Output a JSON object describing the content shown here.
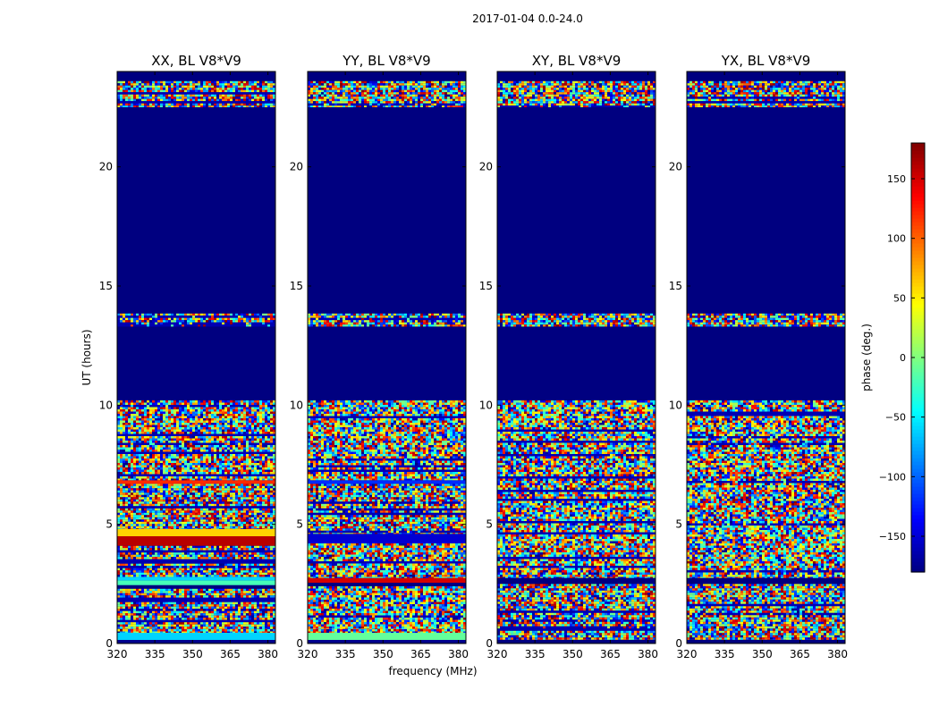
{
  "figure": {
    "suptitle": "2017-01-04 0.0-24.0",
    "colormap": "jet",
    "background_value_color": "#000080"
  },
  "chart_data": [
    {
      "type": "heatmap",
      "title": "XX, BL V8*V9",
      "xlabel": "",
      "ylabel": "UT (hours)",
      "xlim": [
        320,
        383
      ],
      "ylim": [
        0,
        24
      ],
      "xticks": [
        "320",
        "335",
        "350",
        "365",
        "380"
      ],
      "xtick_values": [
        320,
        335,
        350,
        365,
        380
      ],
      "yticks": [
        "0",
        "5",
        "10",
        "15",
        "20"
      ],
      "ytick_values": [
        0,
        5,
        10,
        15,
        20
      ],
      "z_units": "phase (deg.)",
      "bands": [
        {
          "ut": [
            0.0,
            0.15
          ],
          "kind": "solid",
          "phase": -175
        },
        {
          "ut": [
            0.15,
            0.45
          ],
          "kind": "solid",
          "phase": -60
        },
        {
          "ut": [
            0.45,
            0.6
          ],
          "kind": "noise"
        },
        {
          "ut": [
            0.6,
            2.3
          ],
          "kind": "noise"
        },
        {
          "ut": [
            2.3,
            2.45
          ],
          "kind": "solid",
          "phase": -180
        },
        {
          "ut": [
            2.45,
            2.65
          ],
          "kind": "solid",
          "phase": -20
        },
        {
          "ut": [
            2.65,
            2.8
          ],
          "kind": "solid",
          "phase": -60
        },
        {
          "ut": [
            2.8,
            4.1
          ],
          "kind": "noise"
        },
        {
          "ut": [
            4.1,
            4.5
          ],
          "kind": "solid",
          "phase": 160
        },
        {
          "ut": [
            4.5,
            4.8
          ],
          "kind": "solid",
          "phase": 60
        },
        {
          "ut": [
            4.8,
            6.7
          ],
          "kind": "noise"
        },
        {
          "ut": [
            6.7,
            6.85
          ],
          "kind": "solid",
          "phase": 120
        },
        {
          "ut": [
            6.85,
            10.2
          ],
          "kind": "noise"
        },
        {
          "ut": [
            10.2,
            13.3
          ],
          "kind": "solid",
          "phase": -180
        },
        {
          "ut": [
            13.3,
            13.85
          ],
          "kind": "noise"
        },
        {
          "ut": [
            13.85,
            22.5
          ],
          "kind": "solid",
          "phase": -180
        },
        {
          "ut": [
            22.5,
            23.6
          ],
          "kind": "noise"
        },
        {
          "ut": [
            23.6,
            24.0
          ],
          "kind": "solid",
          "phase": -180
        }
      ]
    },
    {
      "type": "heatmap",
      "title": "YY, BL V8*V9",
      "xlabel": "",
      "ylabel": "",
      "xlim": [
        320,
        383
      ],
      "ylim": [
        0,
        24
      ],
      "xticks": [
        "320",
        "335",
        "350",
        "365",
        "380"
      ],
      "xtick_values": [
        320,
        335,
        350,
        365,
        380
      ],
      "yticks": [
        "0",
        "5",
        "10",
        "15",
        "20"
      ],
      "ytick_values": [
        0,
        5,
        10,
        15,
        20
      ],
      "z_units": "phase (deg.)",
      "bands": [
        {
          "ut": [
            0.0,
            0.15
          ],
          "kind": "solid",
          "phase": -175
        },
        {
          "ut": [
            0.15,
            0.45
          ],
          "kind": "solid",
          "phase": -10
        },
        {
          "ut": [
            0.45,
            0.6
          ],
          "kind": "noise"
        },
        {
          "ut": [
            0.6,
            2.4
          ],
          "kind": "noise"
        },
        {
          "ut": [
            2.4,
            2.55
          ],
          "kind": "solid",
          "phase": -180
        },
        {
          "ut": [
            2.55,
            2.75
          ],
          "kind": "solid",
          "phase": 150
        },
        {
          "ut": [
            2.75,
            4.2
          ],
          "kind": "noise"
        },
        {
          "ut": [
            4.2,
            4.6
          ],
          "kind": "solid",
          "phase": -150
        },
        {
          "ut": [
            4.6,
            6.7
          ],
          "kind": "noise"
        },
        {
          "ut": [
            6.7,
            6.85
          ],
          "kind": "solid",
          "phase": -120
        },
        {
          "ut": [
            6.85,
            10.2
          ],
          "kind": "noise"
        },
        {
          "ut": [
            10.2,
            13.3
          ],
          "kind": "solid",
          "phase": -180
        },
        {
          "ut": [
            13.3,
            13.85
          ],
          "kind": "noise"
        },
        {
          "ut": [
            13.85,
            22.5
          ],
          "kind": "solid",
          "phase": -180
        },
        {
          "ut": [
            22.5,
            23.6
          ],
          "kind": "noise"
        },
        {
          "ut": [
            23.6,
            24.0
          ],
          "kind": "solid",
          "phase": -180
        }
      ]
    },
    {
      "type": "heatmap",
      "title": "XY, BL V8*V9",
      "xlabel": "",
      "ylabel": "",
      "xlim": [
        320,
        383
      ],
      "ylim": [
        0,
        24
      ],
      "xticks": [
        "320",
        "335",
        "350",
        "365",
        "380"
      ],
      "xtick_values": [
        320,
        335,
        350,
        365,
        380
      ],
      "yticks": [
        "0",
        "5",
        "10",
        "15",
        "20"
      ],
      "ytick_values": [
        0,
        5,
        10,
        15,
        20
      ],
      "z_units": "phase (deg.)",
      "bands": [
        {
          "ut": [
            0.0,
            0.15
          ],
          "kind": "solid",
          "phase": -180
        },
        {
          "ut": [
            0.15,
            2.5
          ],
          "kind": "noise"
        },
        {
          "ut": [
            2.5,
            2.75
          ],
          "kind": "solid",
          "phase": -180
        },
        {
          "ut": [
            2.75,
            10.2
          ],
          "kind": "noise"
        },
        {
          "ut": [
            10.2,
            13.3
          ],
          "kind": "solid",
          "phase": -180
        },
        {
          "ut": [
            13.3,
            13.85
          ],
          "kind": "noise"
        },
        {
          "ut": [
            13.85,
            22.5
          ],
          "kind": "solid",
          "phase": -180
        },
        {
          "ut": [
            22.5,
            23.6
          ],
          "kind": "noise"
        },
        {
          "ut": [
            23.6,
            24.0
          ],
          "kind": "solid",
          "phase": -180
        }
      ]
    },
    {
      "type": "heatmap",
      "title": "YX, BL V8*V9",
      "xlabel": "",
      "ylabel": "",
      "xlim": [
        320,
        383
      ],
      "ylim": [
        0,
        24
      ],
      "xticks": [
        "320",
        "335",
        "350",
        "365",
        "380"
      ],
      "xtick_values": [
        320,
        335,
        350,
        365,
        380
      ],
      "yticks": [
        "0",
        "5",
        "10",
        "15",
        "20"
      ],
      "ytick_values": [
        0,
        5,
        10,
        15,
        20
      ],
      "z_units": "phase (deg.)",
      "bands": [
        {
          "ut": [
            0.0,
            0.15
          ],
          "kind": "solid",
          "phase": -180
        },
        {
          "ut": [
            0.15,
            2.5
          ],
          "kind": "noise"
        },
        {
          "ut": [
            2.5,
            2.75
          ],
          "kind": "solid",
          "phase": -180
        },
        {
          "ut": [
            2.75,
            10.2
          ],
          "kind": "noise"
        },
        {
          "ut": [
            10.2,
            13.3
          ],
          "kind": "solid",
          "phase": -180
        },
        {
          "ut": [
            13.3,
            13.85
          ],
          "kind": "noise"
        },
        {
          "ut": [
            13.85,
            22.5
          ],
          "kind": "solid",
          "phase": -180
        },
        {
          "ut": [
            22.5,
            23.6
          ],
          "kind": "noise"
        },
        {
          "ut": [
            23.6,
            24.0
          ],
          "kind": "solid",
          "phase": -180
        }
      ]
    }
  ],
  "shared_xlabel": "frequency (MHz)",
  "colorbar": {
    "label": "phase (deg.)",
    "range": [
      -180,
      180
    ],
    "ticks": [
      "150",
      "100",
      "50",
      "0",
      "−50",
      "−100",
      "−150"
    ],
    "tick_values": [
      150,
      100,
      50,
      0,
      -50,
      -100,
      -150
    ]
  }
}
